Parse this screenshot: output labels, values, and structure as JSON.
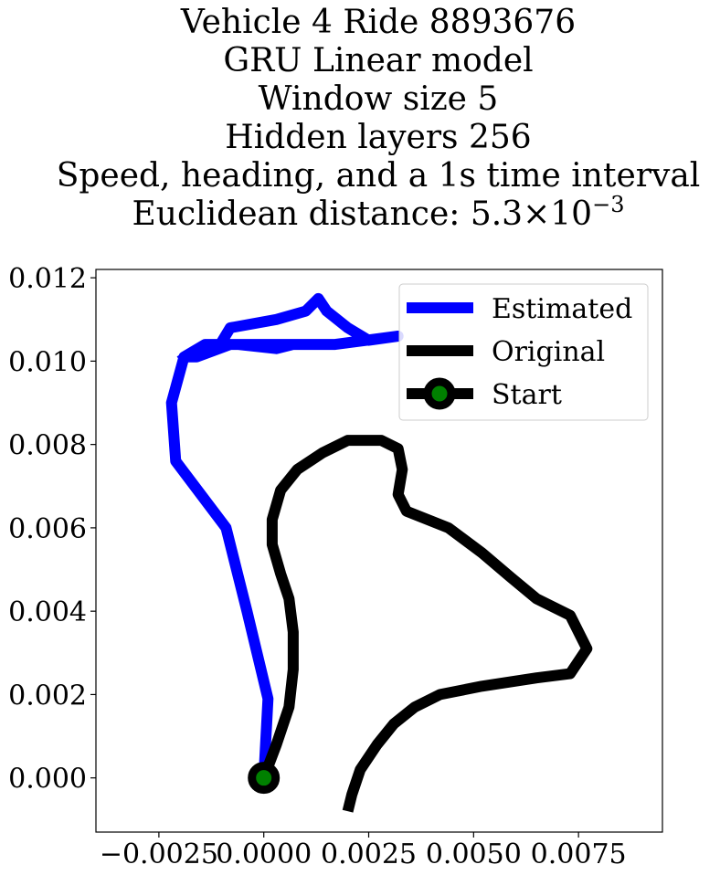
{
  "chart_data": {
    "type": "line",
    "title_lines": [
      "Vehicle 4 Ride 8893676",
      "GRU Linear model",
      "Window size 5",
      "Hidden layers 256",
      "Speed, heading, and a 1s time interval"
    ],
    "title_metric_prefix": "Euclidean distance: ",
    "title_metric_mantissa": "5.3",
    "title_metric_times": "×",
    "title_metric_base": "10",
    "title_metric_exponent": "−3",
    "xlim": [
      -0.004,
      0.0095
    ],
    "ylim": [
      -0.0013,
      0.0122
    ],
    "x_ticks": [
      {
        "value": -0.0025,
        "label": "−0.0025"
      },
      {
        "value": 0.0,
        "label": "0.0000"
      },
      {
        "value": 0.0025,
        "label": "0.0025"
      },
      {
        "value": 0.005,
        "label": "0.0050"
      },
      {
        "value": 0.0075,
        "label": "0.0075"
      }
    ],
    "y_ticks": [
      {
        "value": 0.0,
        "label": "0.000"
      },
      {
        "value": 0.002,
        "label": "0.002"
      },
      {
        "value": 0.004,
        "label": "0.004"
      },
      {
        "value": 0.006,
        "label": "0.006"
      },
      {
        "value": 0.008,
        "label": "0.008"
      },
      {
        "value": 0.01,
        "label": "0.010"
      },
      {
        "value": 0.012,
        "label": "0.012"
      }
    ],
    "grid": false,
    "legend_position": "upper-right",
    "series": [
      {
        "name": "Estimated",
        "color": "#0000ff",
        "points": [
          [
            0.0,
            0.0
          ],
          [
            0.0001,
            0.0019
          ],
          [
            -0.0004,
            0.004
          ],
          [
            -0.0009,
            0.006
          ],
          [
            -0.0021,
            0.0076
          ],
          [
            -0.0022,
            0.009
          ],
          [
            -0.0019,
            0.0101
          ],
          [
            -0.0011,
            0.0103
          ],
          [
            -0.0008,
            0.0108
          ],
          [
            0.0003,
            0.011
          ],
          [
            0.001,
            0.0112
          ],
          [
            0.0013,
            0.0115
          ],
          [
            0.0015,
            0.0112
          ],
          [
            0.002,
            0.0108
          ],
          [
            0.0025,
            0.0105
          ],
          [
            0.0032,
            0.0106
          ],
          [
            0.0017,
            0.0104
          ],
          [
            0.0006,
            0.0104
          ],
          [
            -0.0004,
            0.0104
          ],
          [
            -0.0014,
            0.0104
          ],
          [
            -0.0019,
            0.0101
          ],
          [
            -0.0016,
            0.0101
          ],
          [
            -0.0008,
            0.0104
          ],
          [
            0.0001,
            0.0104
          ],
          [
            0.0007,
            0.0104
          ],
          [
            0.0003,
            0.0103
          ],
          [
            -0.0006,
            0.0104
          ],
          [
            -0.0014,
            0.0104
          ],
          [
            -0.002,
            0.01
          ]
        ]
      },
      {
        "name": "Original",
        "color": "#000000",
        "points": [
          [
            0.0,
            0.0
          ],
          [
            0.0003,
            0.0008
          ],
          [
            0.0006,
            0.0017
          ],
          [
            0.0007,
            0.0026
          ],
          [
            0.0007,
            0.0035
          ],
          [
            0.0006,
            0.0043
          ],
          [
            0.0004,
            0.0049
          ],
          [
            0.0002,
            0.0056
          ],
          [
            0.0002,
            0.0062
          ],
          [
            0.0004,
            0.0069
          ],
          [
            0.0008,
            0.0074
          ],
          [
            0.0014,
            0.0078
          ],
          [
            0.002,
            0.0081
          ],
          [
            0.0028,
            0.0081
          ],
          [
            0.0032,
            0.0079
          ],
          [
            0.0033,
            0.0074
          ],
          [
            0.0032,
            0.0068
          ],
          [
            0.0034,
            0.0064
          ],
          [
            0.0044,
            0.006
          ],
          [
            0.0052,
            0.0054
          ],
          [
            0.0059,
            0.0048
          ],
          [
            0.0065,
            0.0043
          ],
          [
            0.0073,
            0.0039
          ],
          [
            0.0077,
            0.0031
          ],
          [
            0.0073,
            0.0025
          ],
          [
            0.0065,
            0.0024
          ],
          [
            0.0052,
            0.0022
          ],
          [
            0.0042,
            0.002
          ],
          [
            0.0036,
            0.0017
          ],
          [
            0.0031,
            0.0013
          ],
          [
            0.0027,
            0.0008
          ],
          [
            0.0023,
            0.0002
          ],
          [
            0.0021,
            -0.0004
          ],
          [
            0.002,
            -0.0008
          ]
        ]
      }
    ],
    "start_point": {
      "name": "Start",
      "x": 0.0,
      "y": 0.0,
      "color": "#008000",
      "edge_color": "#000000"
    },
    "legend": [
      {
        "label": "Estimated",
        "color": "#0000ff",
        "marker": false
      },
      {
        "label": "Original",
        "color": "#000000",
        "marker": false
      },
      {
        "label": "Start",
        "color": "#000000",
        "marker": true,
        "marker_fill": "#008000"
      }
    ]
  }
}
